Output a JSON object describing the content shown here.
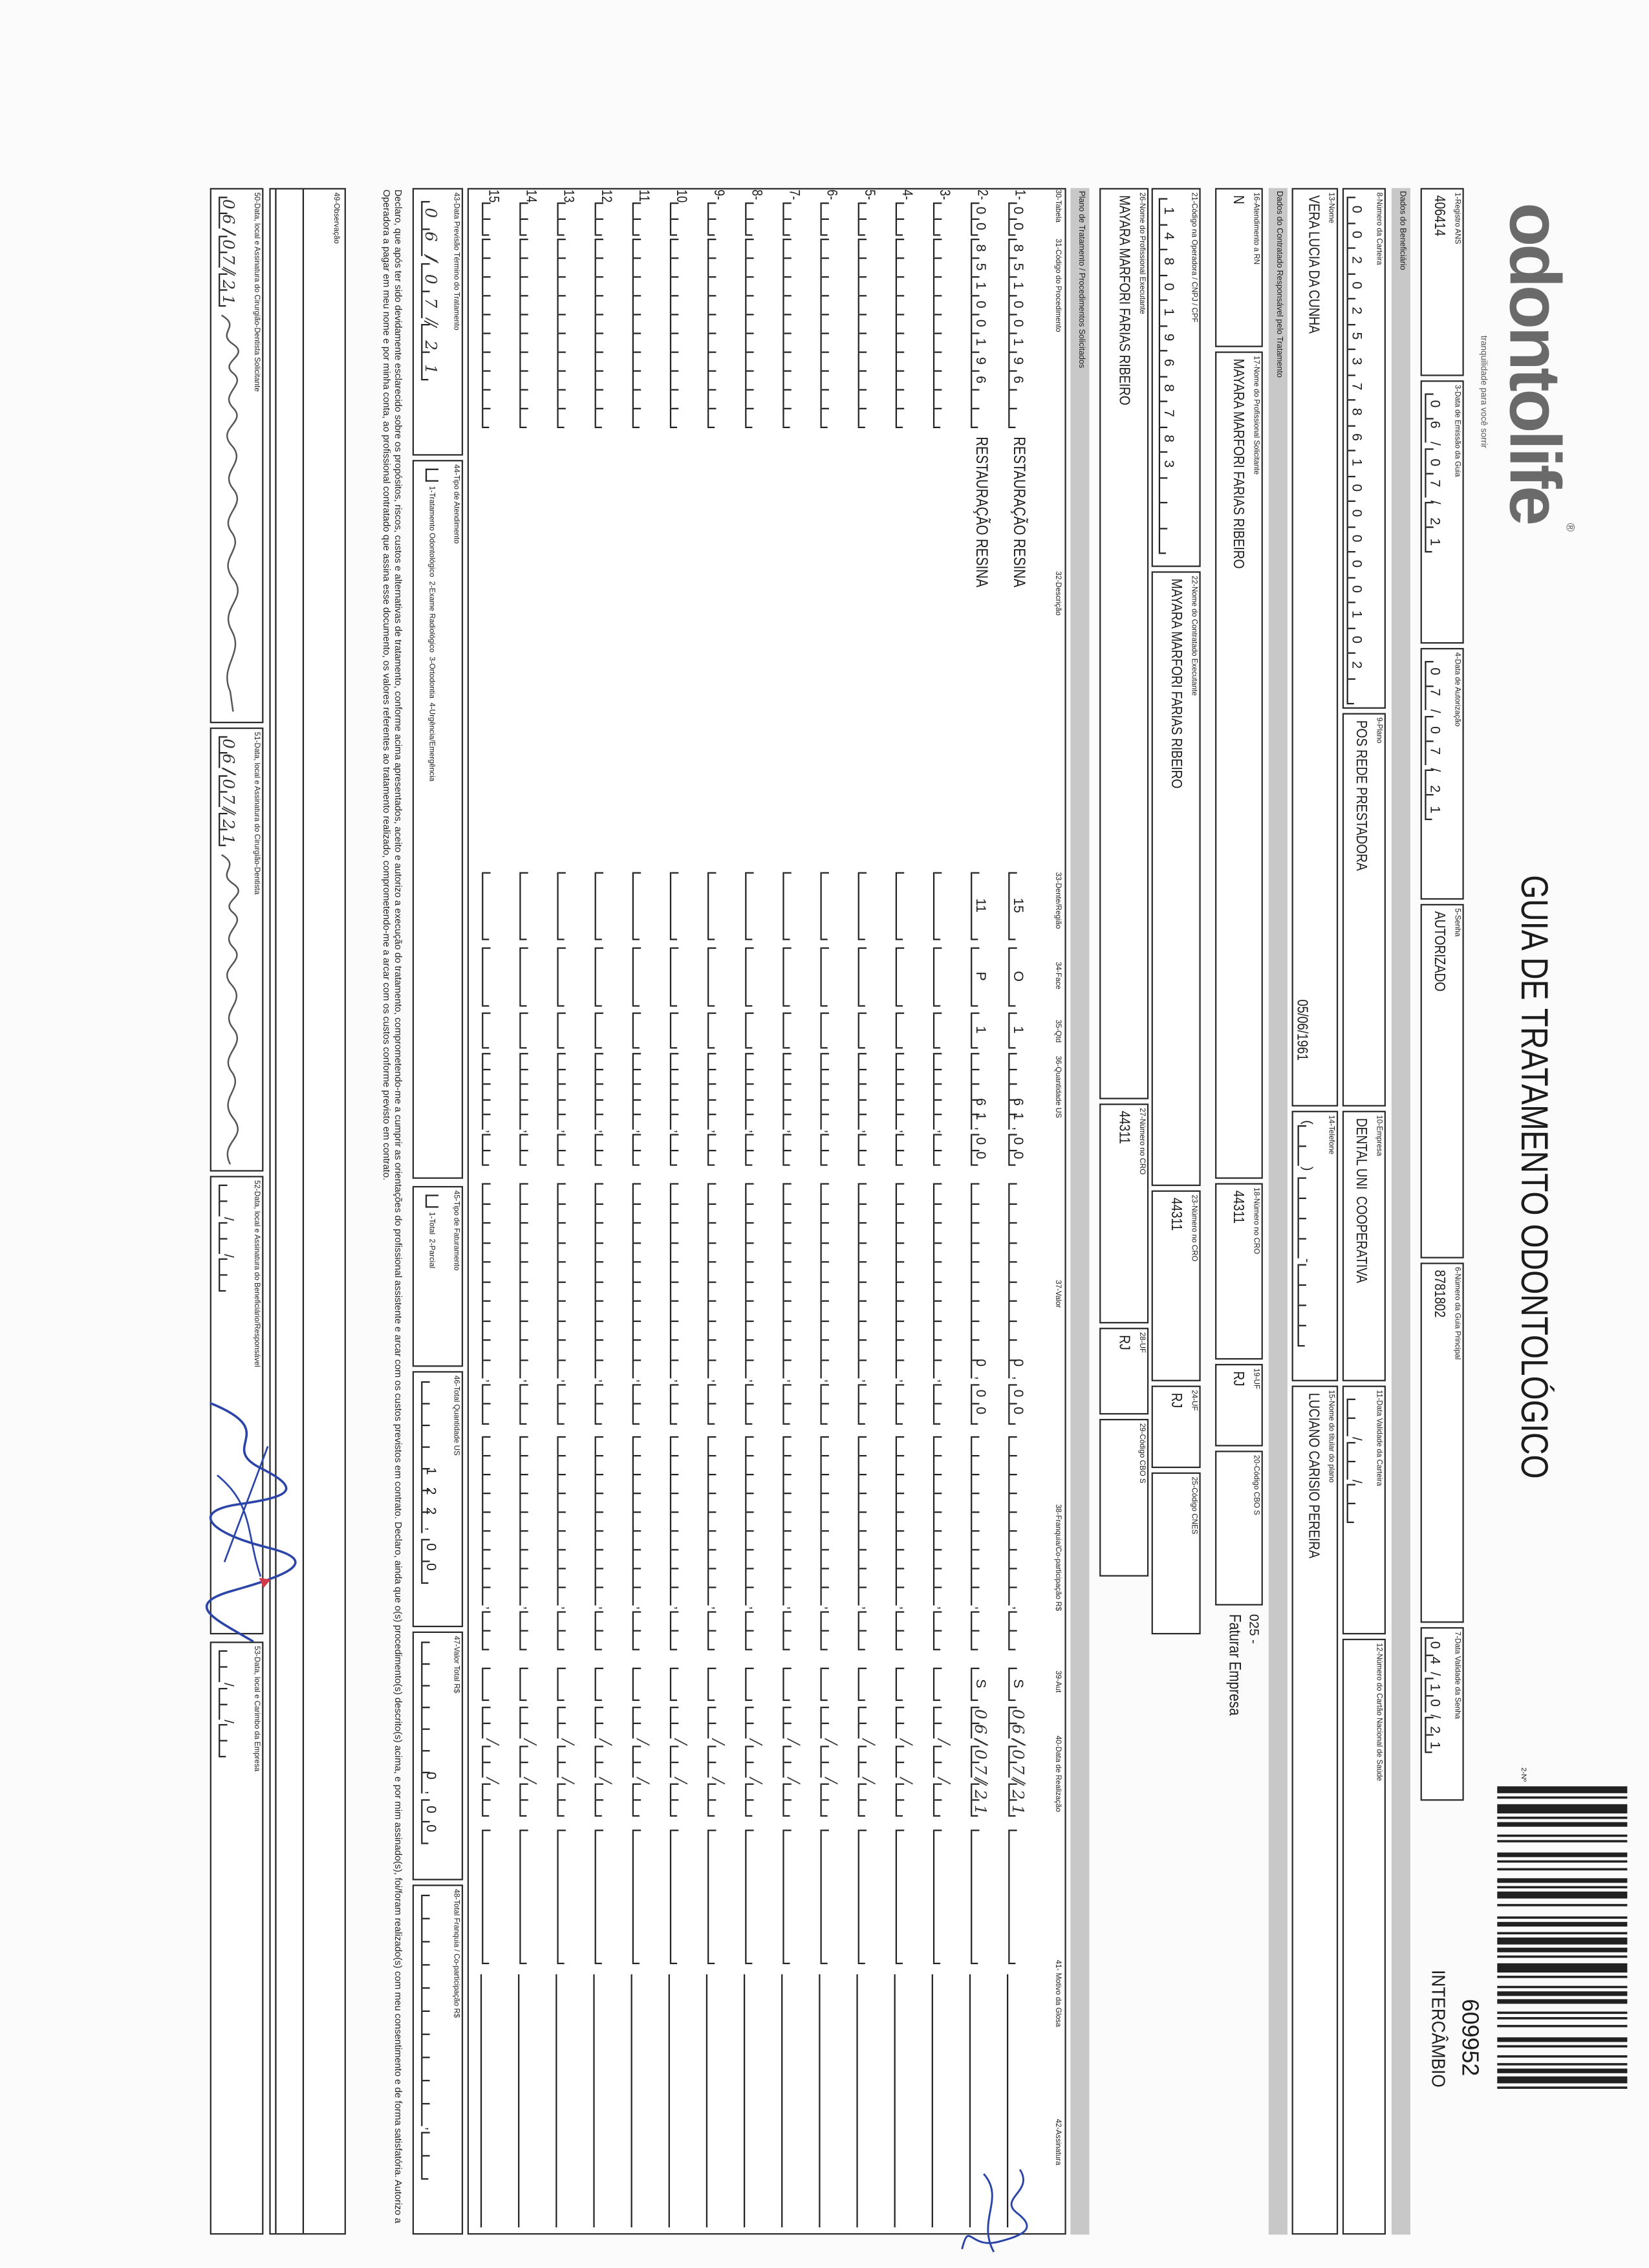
{
  "header": {
    "logo_text": "odontolife",
    "logo_tagline": "tranquilidade para você sorrir",
    "title": "GUIA DE TRATAMENTO ODONTOLÓGICO",
    "guia_no_label": "2-Nº",
    "guia_no": "609952",
    "guia_type": "INTERCÂMBIO"
  },
  "guia": {
    "registro_ans": {
      "label": "1-Registro ANS",
      "value": "406414"
    },
    "data_emissao": {
      "label": "3-Data de Emissão da Guia",
      "value": "06/07/21"
    },
    "data_autorizacao": {
      "label": "4-Data de Autorização",
      "value": "07/07/21"
    },
    "senha": {
      "label": "5-Senha",
      "value": "AUTORIZADO"
    },
    "guia_principal": {
      "label": "6-Número da Guia Principal",
      "value": "8781802"
    },
    "validade_senha": {
      "label": "7-Data Validade da Senha",
      "value": "04/10/21"
    }
  },
  "beneficiario": {
    "section": "Dados do Beneficiário",
    "carteira": {
      "label": "8-Número da Carteira",
      "value": "0020253786100000102"
    },
    "plano": {
      "label": "9-Plano",
      "value": "POS REDE PRESTADORA"
    },
    "empresa": {
      "label": "10-Empresa",
      "value": "DENTAL UNI  COOPERATIVA"
    },
    "validade_carteira": {
      "label": "11-Data Validade da Carteira",
      "value": ""
    },
    "cns": {
      "label": "12-Número do Cartão Nacional de Saúde",
      "value": ""
    },
    "nome": {
      "label": "13-Nome",
      "value": "VERA LUCIA DA CUNHA",
      "birth_date": "05/06/1961"
    },
    "telefone": {
      "label": "14-Telefone",
      "value": ""
    },
    "titular": {
      "label": "15-Nome do titular do plano",
      "value": "LUCIANO CARISIO PEREIRA"
    }
  },
  "contratado": {
    "section": "Dados do Contratado Responsável pelo Tratamento",
    "atendimento_rn": {
      "label": "16-Atendimento a RN",
      "value": "N"
    },
    "prof_solicitante": {
      "label": "17-Nome do Profissional Solicitante",
      "value": "MAYARA MARFORI FARIAS RIBEIRO"
    },
    "cro_solicitante": {
      "label": "18-Número no CRO",
      "value": "44311"
    },
    "uf_solicitante": {
      "label": "19-UF",
      "value": "RJ"
    },
    "cbo_solicitante": {
      "label": "20-Código CBO S",
      "value": ""
    },
    "faturamento_code": "025 -",
    "faturamento_note": "Faturar Empresa",
    "codigo_operadora": {
      "label": "21-Código na Operadora / CNPJ / CPF",
      "value": "14801968783"
    },
    "contratado_executante": {
      "label": "22-Nome do Contratado Executante",
      "value": "MAYARA MARFORI FARIAS RIBEIRO"
    },
    "cro_contratado": {
      "label": "23-Número no CRO",
      "value": "44311"
    },
    "uf_contratado": {
      "label": "24-UF",
      "value": "RJ"
    },
    "cnes": {
      "label": "25-Código CNES",
      "value": ""
    },
    "prof_executante": {
      "label": "26-Nome do Profissional Executante",
      "value": "MAYARA MARFORI FARIAS RIBEIRO"
    },
    "cro_executante": {
      "label": "27-Número no CRO",
      "value": "44311"
    },
    "uf_executante": {
      "label": "28-UF",
      "value": "RJ"
    },
    "cbo_executante": {
      "label": "29-Código CBO S",
      "value": ""
    }
  },
  "plano": {
    "section": "Plano de Tratamento / Procedimentos Solicitados",
    "headers": {
      "tabela": "30-Tabela",
      "codigo": "31-Código do Procedimento",
      "descricao": "32-Descrição",
      "dente": "33-Dente/Região",
      "face": "34-Face",
      "qtd": "35-Qtd",
      "qtd_us": "36-Quantidade US",
      "valor": "37-Valor",
      "franquia": "38-Franquia/Co-participação R$",
      "aut": "39-Aut",
      "data": "40-Data de Realização",
      "glosa": "41- Motivo da Glosa",
      "assinatura": "42-Assinatura"
    },
    "rows": [
      {
        "n": "1-",
        "tabela": "00",
        "codigo": "85100196",
        "descricao": "RESTAURAÇÃO RESINA",
        "dente": "15",
        "face": "O",
        "qtd": "1",
        "qtd_us": "61,00",
        "valor": "0,00",
        "franquia": "",
        "aut": "S",
        "data": "06/07/21",
        "glosa": ""
      },
      {
        "n": "2-",
        "tabela": "00",
        "codigo": "85100196",
        "descricao": "RESTAURAÇÃO RESINA",
        "dente": "11",
        "face": "P",
        "qtd": "1",
        "qtd_us": "61,00",
        "valor": "0,00",
        "franquia": "",
        "aut": "S",
        "data": "06/07/21",
        "glosa": ""
      },
      {
        "n": "3-",
        "tabela": "",
        "codigo": "",
        "descricao": "",
        "dente": "",
        "face": "",
        "qtd": "",
        "qtd_us": "",
        "valor": "",
        "franquia": "",
        "aut": "",
        "data": "",
        "glosa": ""
      },
      {
        "n": "4-",
        "tabela": "",
        "codigo": "",
        "descricao": "",
        "dente": "",
        "face": "",
        "qtd": "",
        "qtd_us": "",
        "valor": "",
        "franquia": "",
        "aut": "",
        "data": "",
        "glosa": ""
      },
      {
        "n": "5-",
        "tabela": "",
        "codigo": "",
        "descricao": "",
        "dente": "",
        "face": "",
        "qtd": "",
        "qtd_us": "",
        "valor": "",
        "franquia": "",
        "aut": "",
        "data": "",
        "glosa": ""
      },
      {
        "n": "6-",
        "tabela": "",
        "codigo": "",
        "descricao": "",
        "dente": "",
        "face": "",
        "qtd": "",
        "qtd_us": "",
        "valor": "",
        "franquia": "",
        "aut": "",
        "data": "",
        "glosa": ""
      },
      {
        "n": "7-",
        "tabela": "",
        "codigo": "",
        "descricao": "",
        "dente": "",
        "face": "",
        "qtd": "",
        "qtd_us": "",
        "valor": "",
        "franquia": "",
        "aut": "",
        "data": "",
        "glosa": ""
      },
      {
        "n": "8-",
        "tabela": "",
        "codigo": "",
        "descricao": "",
        "dente": "",
        "face": "",
        "qtd": "",
        "qtd_us": "",
        "valor": "",
        "franquia": "",
        "aut": "",
        "data": "",
        "glosa": ""
      },
      {
        "n": "9-",
        "tabela": "",
        "codigo": "",
        "descricao": "",
        "dente": "",
        "face": "",
        "qtd": "",
        "qtd_us": "",
        "valor": "",
        "franquia": "",
        "aut": "",
        "data": "",
        "glosa": ""
      },
      {
        "n": "10",
        "tabela": "",
        "codigo": "",
        "descricao": "",
        "dente": "",
        "face": "",
        "qtd": "",
        "qtd_us": "",
        "valor": "",
        "franquia": "",
        "aut": "",
        "data": "",
        "glosa": ""
      },
      {
        "n": "11",
        "tabela": "",
        "codigo": "",
        "descricao": "",
        "dente": "",
        "face": "",
        "qtd": "",
        "qtd_us": "",
        "valor": "",
        "franquia": "",
        "aut": "",
        "data": "",
        "glosa": ""
      },
      {
        "n": "12",
        "tabela": "",
        "codigo": "",
        "descricao": "",
        "dente": "",
        "face": "",
        "qtd": "",
        "qtd_us": "",
        "valor": "",
        "franquia": "",
        "aut": "",
        "data": "",
        "glosa": ""
      },
      {
        "n": "13",
        "tabela": "",
        "codigo": "",
        "descricao": "",
        "dente": "",
        "face": "",
        "qtd": "",
        "qtd_us": "",
        "valor": "",
        "franquia": "",
        "aut": "",
        "data": "",
        "glosa": ""
      },
      {
        "n": "14",
        "tabela": "",
        "codigo": "",
        "descricao": "",
        "dente": "",
        "face": "",
        "qtd": "",
        "qtd_us": "",
        "valor": "",
        "franquia": "",
        "aut": "",
        "data": "",
        "glosa": ""
      },
      {
        "n": "15",
        "tabela": "",
        "codigo": "",
        "descricao": "",
        "dente": "",
        "face": "",
        "qtd": "",
        "qtd_us": "",
        "valor": "",
        "franquia": "",
        "aut": "",
        "data": "",
        "glosa": ""
      }
    ]
  },
  "totais": {
    "previsao_termino": {
      "label": "43-Data Previsão Término do Tratamento",
      "value": "06/07/21"
    },
    "tipo_atendimento": {
      "label": "44-Tipo de Atendimento",
      "options": "1-Tratamento Odontológico  2-Exame Radiológico  3-Ortodontia  4-Urgência/Emergência",
      "value": ""
    },
    "tipo_faturamento": {
      "label": "45-Tipo de Faturamento",
      "options": "1-Total  2-Parcial",
      "value": ""
    },
    "total_us": {
      "label": "46-Total Quantidade US",
      "value": "122,00"
    },
    "valor_total": {
      "label": "47-Valor Total R$",
      "value": "0,00"
    },
    "total_franquia": {
      "label": "48-Total Franquia / Co-participação R$",
      "value": ""
    }
  },
  "declaracao": "Declaro, que após ter sido devidamente esclarecido sobre os propósitos, riscos, custos e alternativas de tratamento, conforme acima apresentados, aceito e autorizo a execução do tratamento, comprometendo-me a cumprir as orientações do profissional assistente e arcar com os custos previstos em contrato. Declaro, ainda que o(s) procedimento(s) descrito(s) acima, e por mim assinado(s), foi/foram realizado(s) com meu consentimento e de forma satisfatória. Autorizo a Operadora a pagar em meu nome e por minha conta, ao profissional contratado que assina esse documento, os valores referentes ao tratamento realizado, comprometendo-me a arcar com os custos conforme previsto em contrato.",
  "observacao": {
    "label": "49-Observação",
    "value": ""
  },
  "assinaturas": {
    "solicitante": {
      "label": "50-Data, local e Assinatura do Cirurgião-Dentista Solicitante",
      "date": "06/07/21"
    },
    "dentista": {
      "label": "51-Data, local e Assinatura do Cirurgião-Dentista",
      "date": "06/07/21"
    },
    "beneficiario": {
      "label": "52-Data, local e Assinatura do Beneficiário/Responsável",
      "date": ""
    },
    "empresa": {
      "label": "53-Data, local e Carimbo da Empresa",
      "date": ""
    }
  },
  "colors": {
    "ink": "#1c1c1c",
    "band": "#c8c8c8",
    "signature_blue": "#2b44a8",
    "mark_red": "#d23a4a"
  }
}
